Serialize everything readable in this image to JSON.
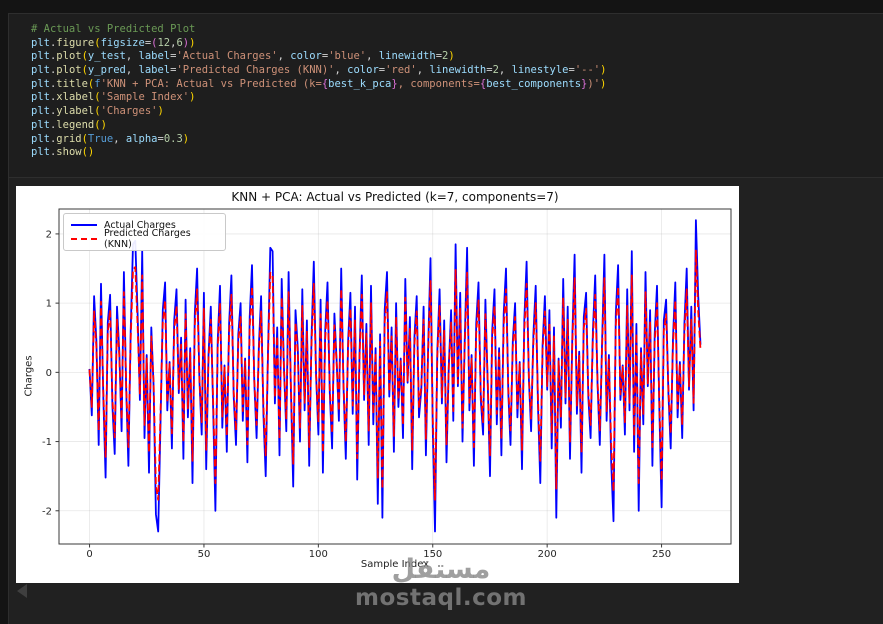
{
  "editor": {
    "palette": {
      "background": "#1e1e1e",
      "comment": "#6A9955",
      "variable": "#9CDCFE",
      "function": "#DCDCAA",
      "plain": "#D4D4D4",
      "string": "#CE9178",
      "number": "#B5CEA8",
      "keyword": "#569CD6",
      "bracket_gold": "#FFD700",
      "bracket_pink": "#DA70D6"
    },
    "code_lines": [
      [
        [
          "cm",
          "# Actual vs Predicted Plot"
        ]
      ],
      [
        [
          "v",
          "plt"
        ],
        [
          "p",
          "."
        ],
        [
          "fn",
          "figure"
        ],
        [
          "b1",
          "("
        ],
        [
          "v",
          "figsize"
        ],
        [
          "p",
          "="
        ],
        [
          "b2",
          "("
        ],
        [
          "n",
          "12"
        ],
        [
          "p",
          ","
        ],
        [
          "n",
          "6"
        ],
        [
          "b2",
          ")"
        ],
        [
          "b1",
          ")"
        ]
      ],
      [
        [
          "v",
          "plt"
        ],
        [
          "p",
          "."
        ],
        [
          "fn",
          "plot"
        ],
        [
          "b1",
          "("
        ],
        [
          "v",
          "y_test"
        ],
        [
          "p",
          ", "
        ],
        [
          "v",
          "label"
        ],
        [
          "p",
          "="
        ],
        [
          "s",
          "'Actual Charges'"
        ],
        [
          "p",
          ", "
        ],
        [
          "v",
          "color"
        ],
        [
          "p",
          "="
        ],
        [
          "s",
          "'blue'"
        ],
        [
          "p",
          ", "
        ],
        [
          "v",
          "linewidth"
        ],
        [
          "p",
          "="
        ],
        [
          "n",
          "2"
        ],
        [
          "b1",
          ")"
        ]
      ],
      [
        [
          "v",
          "plt"
        ],
        [
          "p",
          "."
        ],
        [
          "fn",
          "plot"
        ],
        [
          "b1",
          "("
        ],
        [
          "v",
          "y_pred"
        ],
        [
          "p",
          ", "
        ],
        [
          "v",
          "label"
        ],
        [
          "p",
          "="
        ],
        [
          "s",
          "'Predicted Charges (KNN)'"
        ],
        [
          "p",
          ", "
        ],
        [
          "v",
          "color"
        ],
        [
          "p",
          "="
        ],
        [
          "s",
          "'red'"
        ],
        [
          "p",
          ", "
        ],
        [
          "v",
          "linewidth"
        ],
        [
          "p",
          "="
        ],
        [
          "n",
          "2"
        ],
        [
          "p",
          ", "
        ],
        [
          "v",
          "linestyle"
        ],
        [
          "p",
          "="
        ],
        [
          "s",
          "'--'"
        ],
        [
          "b1",
          ")"
        ]
      ],
      [
        [
          "v",
          "plt"
        ],
        [
          "p",
          "."
        ],
        [
          "fn",
          "title"
        ],
        [
          "b1",
          "("
        ],
        [
          "k",
          "f"
        ],
        [
          "s",
          "'KNN + PCA: Actual vs Predicted (k="
        ],
        [
          "b2",
          "{"
        ],
        [
          "v",
          "best_k_pca"
        ],
        [
          "b2",
          "}"
        ],
        [
          "s",
          ", components="
        ],
        [
          "b2",
          "{"
        ],
        [
          "v",
          "best_components"
        ],
        [
          "b2",
          "}"
        ],
        [
          "s",
          ")'"
        ],
        [
          "b1",
          ")"
        ]
      ],
      [
        [
          "v",
          "plt"
        ],
        [
          "p",
          "."
        ],
        [
          "fn",
          "xlabel"
        ],
        [
          "b1",
          "("
        ],
        [
          "s",
          "'Sample Index'"
        ],
        [
          "b1",
          ")"
        ]
      ],
      [
        [
          "v",
          "plt"
        ],
        [
          "p",
          "."
        ],
        [
          "fn",
          "ylabel"
        ],
        [
          "b1",
          "("
        ],
        [
          "s",
          "'Charges'"
        ],
        [
          "b1",
          ")"
        ]
      ],
      [
        [
          "v",
          "plt"
        ],
        [
          "p",
          "."
        ],
        [
          "fn",
          "legend"
        ],
        [
          "b1",
          "("
        ],
        [
          "b1",
          ")"
        ]
      ],
      [
        [
          "v",
          "plt"
        ],
        [
          "p",
          "."
        ],
        [
          "fn",
          "grid"
        ],
        [
          "b1",
          "("
        ],
        [
          "k",
          "True"
        ],
        [
          "p",
          ", "
        ],
        [
          "v",
          "alpha"
        ],
        [
          "p",
          "="
        ],
        [
          "n",
          "0.3"
        ],
        [
          "b1",
          ")"
        ]
      ],
      [
        [
          "v",
          "plt"
        ],
        [
          "p",
          "."
        ],
        [
          "fn",
          "show"
        ],
        [
          "b1",
          "("
        ],
        [
          "b1",
          ")"
        ]
      ]
    ]
  },
  "chart_data": {
    "type": "line",
    "title": "KNN + PCA: Actual vs Predicted (k=7, components=7)",
    "xlabel": "Sample Index",
    "ylabel": "Charges",
    "xlim": [
      -13.35,
      280.35
    ],
    "ylim": [
      -2.48,
      2.36
    ],
    "xticks": [
      0,
      50,
      100,
      150,
      200,
      250
    ],
    "yticks": [
      -2,
      -1,
      0,
      1,
      2
    ],
    "grid": true,
    "grid_alpha": 0.3,
    "legend_position": "upper left",
    "n_points": 268,
    "series": [
      {
        "name": "Actual Charges",
        "color": "#0000ff",
        "linestyle": "solid",
        "linewidth": 2,
        "values": [
          0.05,
          -0.62,
          1.1,
          0.45,
          -1.05,
          1.28,
          -0.35,
          -1.52,
          0.72,
          1.12,
          -0.48,
          -1.18,
          0.95,
          0.3,
          -0.85,
          1.45,
          -0.25,
          -1.35,
          0.6,
          1.85,
          1.9,
          0.85,
          -0.4,
          1.75,
          -0.95,
          0.25,
          -1.45,
          0.65,
          -0.2,
          -2.05,
          -2.3,
          -0.75,
          0.9,
          1.3,
          -0.55,
          0.15,
          -1.1,
          0.75,
          1.2,
          -0.3,
          0.5,
          -1.25,
          1.05,
          -0.65,
          0.35,
          -1.6,
          0.85,
          1.5,
          -0.1,
          -0.9,
          1.15,
          -1.4,
          0.25,
          0.95,
          -0.5,
          -2.0,
          0.45,
          1.25,
          -0.8,
          0.1,
          -1.15,
          0.7,
          1.4,
          -0.35,
          -1.05,
          0.55,
          1.0,
          -0.7,
          0.2,
          -1.3,
          0.8,
          1.55,
          -0.15,
          -0.95,
          0.4,
          1.1,
          -0.6,
          -1.5,
          0.3,
          1.8,
          1.75,
          -0.45,
          0.65,
          -1.2,
          1.35,
          0.05,
          -0.85,
          1.45,
          -0.25,
          -1.65,
          0.9,
          0.35,
          -1.0,
          1.2,
          -0.55,
          0.75,
          -1.35,
          0.5,
          1.6,
          -0.05,
          -0.9,
          1.05,
          -1.45,
          0.6,
          1.3,
          -0.3,
          -1.1,
          0.85,
          0.15,
          -0.7,
          1.5,
          -0.2,
          -1.25,
          0.45,
          1.15,
          -0.6,
          0.95,
          -1.55,
          0.25,
          1.4,
          -0.4,
          0.7,
          -1.05,
          1.25,
          -0.75,
          0.35,
          -1.9,
          0.55,
          -2.1,
          0.9,
          1.45,
          -0.35,
          0.65,
          -1.15,
          1.0,
          -0.5,
          0.2,
          -0.95,
          1.35,
          -0.15,
          0.8,
          -1.4,
          0.5,
          1.1,
          -0.65,
          -0.25,
          0.95,
          -1.2,
          0.4,
          1.65,
          -0.85,
          -2.3,
          0.3,
          1.2,
          -0.45,
          0.75,
          -1.3,
          0.1,
          0.9,
          -0.7,
          1.85,
          -0.2,
          1.15,
          -1.0,
          0.5,
          1.8,
          -0.55,
          0.25,
          -1.35,
          0.7,
          1.3,
          -0.4,
          -0.9,
          1.05,
          -0.15,
          -1.5,
          0.6,
          1.2,
          -0.75,
          0.35,
          -1.2,
          0.85,
          1.5,
          -0.3,
          -1.05,
          0.45,
          1.0,
          -0.65,
          0.15,
          -1.4,
          0.75,
          1.6,
          -0.1,
          -0.85,
          0.55,
          1.25,
          -0.5,
          -1.6,
          0.4,
          1.1,
          -0.25,
          0.9,
          -1.1,
          0.65,
          -2.1,
          0.2,
          -0.8,
          1.35,
          -0.45,
          0.95,
          -1.25,
          0.5,
          1.7,
          -0.6,
          0.3,
          -1.45,
          0.8,
          1.15,
          -0.35,
          -0.95,
          0.6,
          1.4,
          -0.15,
          -1.05,
          0.45,
          1.7,
          -0.7,
          0.25,
          -1.3,
          -2.15,
          0.85,
          1.55,
          -0.4,
          0.1,
          -0.9,
          1.2,
          -0.55,
          1.75,
          -1.15,
          0.7,
          -2.0,
          0.35,
          -0.75,
          1.45,
          -0.2,
          0.9,
          -1.35,
          0.55,
          1.25,
          -0.5,
          -1.95,
          0.75,
          1.05,
          -0.3,
          -1.1,
          0.5,
          1.3,
          -0.65,
          0.15,
          -0.95,
          0.7,
          1.5,
          -0.25,
          0.95,
          -0.55,
          2.2,
          1.1,
          0.4
        ]
      },
      {
        "name": "Predicted Charges (KNN)",
        "color": "#ff0000",
        "linestyle": "dashed",
        "linewidth": 2,
        "values": [
          0.04,
          -0.5,
          0.88,
          0.36,
          -0.84,
          1.02,
          -0.28,
          -1.22,
          0.58,
          0.9,
          -0.38,
          -0.94,
          0.76,
          0.24,
          -0.68,
          1.16,
          -0.2,
          -1.08,
          0.48,
          1.48,
          1.52,
          0.68,
          -0.32,
          1.4,
          -0.76,
          0.2,
          -1.16,
          0.52,
          -0.16,
          -1.64,
          -1.84,
          -0.6,
          0.72,
          1.04,
          -0.44,
          0.12,
          -0.88,
          0.6,
          0.96,
          -0.24,
          0.4,
          -1.0,
          0.84,
          -0.52,
          0.28,
          -1.28,
          0.68,
          1.2,
          -0.08,
          -0.72,
          0.92,
          -1.12,
          0.2,
          0.76,
          -0.4,
          -1.6,
          0.36,
          1.0,
          -0.64,
          0.08,
          -0.92,
          0.56,
          1.12,
          -0.28,
          -0.84,
          0.44,
          0.8,
          -0.56,
          0.16,
          -1.04,
          0.64,
          1.24,
          -0.12,
          -0.76,
          0.32,
          0.88,
          -0.48,
          -1.2,
          0.24,
          1.44,
          1.4,
          -0.36,
          0.52,
          -0.96,
          1.08,
          0.04,
          -0.68,
          1.16,
          -0.2,
          -1.32,
          0.72,
          0.28,
          -0.8,
          0.96,
          -0.44,
          0.6,
          -1.08,
          0.4,
          1.28,
          -0.04,
          -0.72,
          0.84,
          -1.16,
          0.48,
          1.04,
          -0.24,
          -0.88,
          0.68,
          0.12,
          -0.56,
          1.2,
          -0.16,
          -1.0,
          0.36,
          0.92,
          -0.48,
          0.76,
          -1.24,
          0.2,
          1.12,
          -0.32,
          0.56,
          -0.84,
          1.0,
          -0.6,
          0.28,
          -1.52,
          0.44,
          -1.68,
          0.72,
          1.16,
          -0.28,
          0.52,
          -0.92,
          0.8,
          -0.4,
          0.16,
          -0.76,
          1.08,
          -0.12,
          0.64,
          -1.12,
          0.4,
          0.88,
          -0.52,
          -0.2,
          0.76,
          -0.96,
          0.32,
          1.32,
          -0.68,
          -1.84,
          0.24,
          0.96,
          -0.36,
          0.6,
          -1.04,
          0.08,
          0.72,
          -0.56,
          1.48,
          -0.16,
          0.92,
          -0.8,
          0.4,
          1.44,
          -0.44,
          0.2,
          -1.08,
          0.56,
          1.04,
          -0.32,
          -0.72,
          0.84,
          -0.12,
          -1.2,
          0.48,
          0.96,
          -0.6,
          0.28,
          -0.96,
          0.68,
          1.2,
          -0.24,
          -0.84,
          0.36,
          0.8,
          -0.52,
          0.12,
          -1.12,
          0.6,
          1.28,
          -0.08,
          -0.68,
          0.44,
          1.0,
          -0.4,
          -1.28,
          0.32,
          0.88,
          -0.2,
          0.72,
          -0.88,
          0.52,
          -1.68,
          0.16,
          -0.64,
          1.08,
          -0.36,
          0.76,
          -1.0,
          0.4,
          1.36,
          -0.48,
          0.24,
          -1.16,
          0.64,
          0.92,
          -0.28,
          -0.76,
          0.48,
          1.12,
          -0.12,
          -0.84,
          0.36,
          1.36,
          -0.56,
          0.2,
          -1.04,
          -1.72,
          0.68,
          1.24,
          -0.32,
          0.08,
          -0.72,
          0.96,
          -0.44,
          1.4,
          -0.92,
          0.56,
          -1.6,
          0.28,
          -0.6,
          1.16,
          -0.16,
          0.72,
          -1.08,
          0.44,
          1.0,
          -0.4,
          -1.56,
          0.6,
          0.84,
          -0.24,
          -0.88,
          0.4,
          1.04,
          -0.52,
          0.12,
          -0.76,
          0.56,
          1.2,
          -0.2,
          0.76,
          -0.44,
          1.76,
          0.88,
          0.32
        ]
      }
    ]
  },
  "watermark": {
    "logo_text": "مستقل",
    "site_text": "mostaql.com"
  },
  "icons": {
    "collapse_cell": "left-triangle"
  }
}
